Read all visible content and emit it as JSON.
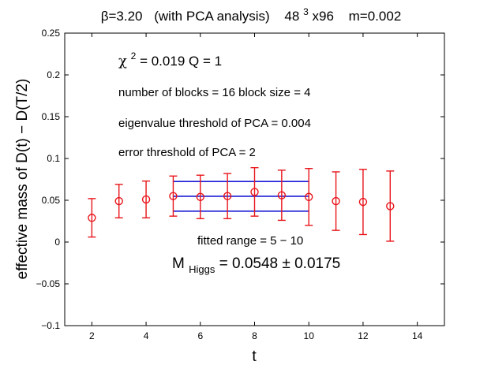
{
  "chart_data": {
    "type": "scatter",
    "title": {
      "beta": "β=3.20",
      "analysis": "(with PCA analysis)",
      "lattice_base": "48",
      "lattice_exp": "3",
      "lattice_rest": "x96",
      "mass": "m=0.002"
    },
    "xlabel": "t",
    "ylabel": "effective mass of D(t)  − D(T/2)",
    "xlim": [
      1,
      15
    ],
    "ylim": [
      -0.1,
      0.25
    ],
    "xticks": [
      2,
      4,
      6,
      8,
      10,
      12,
      14
    ],
    "yticks": [
      -0.1,
      -0.05,
      0,
      0.05,
      0.1,
      0.15,
      0.2,
      0.25
    ],
    "ytick_labels": [
      "−0.1",
      "−0.05",
      "0",
      "0.05",
      "0.1",
      "0.15",
      "0.2",
      "0.25"
    ],
    "grid": false,
    "series": [
      {
        "name": "effective mass",
        "color": "#e8141a",
        "marker": "open-circle",
        "x": [
          2,
          3,
          4,
          5,
          6,
          7,
          8,
          9,
          10,
          11,
          12,
          13
        ],
        "y": [
          0.029,
          0.049,
          0.051,
          0.055,
          0.054,
          0.055,
          0.06,
          0.056,
          0.054,
          0.049,
          0.048,
          0.043
        ],
        "yerr": [
          0.023,
          0.02,
          0.022,
          0.024,
          0.026,
          0.027,
          0.029,
          0.03,
          0.034,
          0.035,
          0.039,
          0.042
        ]
      }
    ],
    "fit": {
      "color": "#1a1ad6",
      "x_range": [
        5,
        10
      ],
      "value": 0.0548,
      "upper": 0.0725,
      "lower": 0.037
    },
    "annotations": {
      "chi_symbol": "χ",
      "chi_exp": "2",
      "chi_rest": " = 0.019   Q = 1",
      "blocks": "number of blocks = 16   block size = 4",
      "eigen": "eigenvalue threshold of PCA = 0.004",
      "error": "error threshold of PCA = 2",
      "fitted_range": "fitted range = 5 − 10",
      "mass_symbol": "M",
      "mass_sub": "Higgs",
      "mass_rest": " = 0.0548 ± 0.0175"
    }
  }
}
